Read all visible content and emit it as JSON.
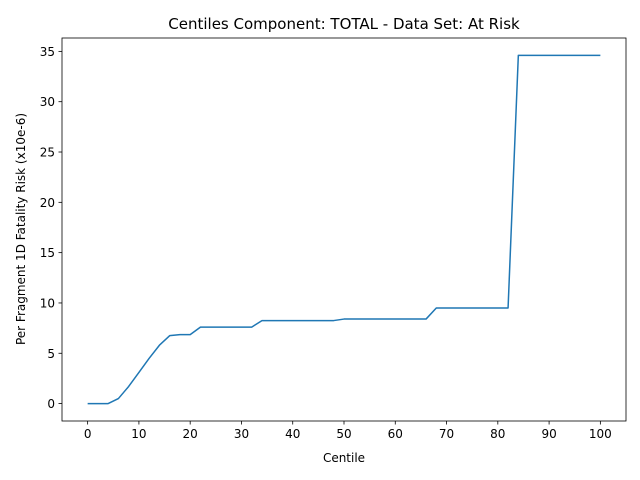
{
  "chart_data": {
    "type": "line",
    "title": "Centiles Component: TOTAL - Data Set: At Risk",
    "xlabel": "Centile",
    "ylabel": "Per Fragment 1D Fatality Risk (x10e-6)",
    "xlim": [
      -5,
      105
    ],
    "ylim": [
      -1.73,
      36.33
    ],
    "xticks": [
      0,
      10,
      20,
      30,
      40,
      50,
      60,
      70,
      80,
      90,
      100
    ],
    "yticks": [
      0,
      5,
      10,
      15,
      20,
      25,
      30,
      35
    ],
    "grid": false,
    "line_color": "#1f77b4",
    "series": [
      {
        "x": [
          0,
          2,
          4,
          6,
          8,
          10,
          12,
          14,
          16,
          18,
          20,
          22,
          24,
          26,
          28,
          30,
          32,
          34,
          36,
          38,
          40,
          42,
          44,
          46,
          48,
          50,
          52,
          54,
          56,
          58,
          60,
          62,
          64,
          66,
          68,
          70,
          72,
          74,
          76,
          78,
          80,
          82,
          84,
          86,
          88,
          90,
          92,
          94,
          96,
          98,
          100
        ],
        "y": [
          0.0,
          0.0,
          0.0,
          0.5,
          1.7,
          3.1,
          4.5,
          5.8,
          6.75,
          6.85,
          6.85,
          7.6,
          7.6,
          7.6,
          7.6,
          7.6,
          7.6,
          8.25,
          8.25,
          8.25,
          8.25,
          8.25,
          8.25,
          8.25,
          8.25,
          8.4,
          8.4,
          8.4,
          8.4,
          8.4,
          8.4,
          8.4,
          8.4,
          8.4,
          9.5,
          9.5,
          9.5,
          9.5,
          9.5,
          9.5,
          9.5,
          9.5,
          34.6,
          34.6,
          34.6,
          34.6,
          34.6,
          34.6,
          34.6,
          34.6,
          34.6
        ]
      }
    ]
  }
}
